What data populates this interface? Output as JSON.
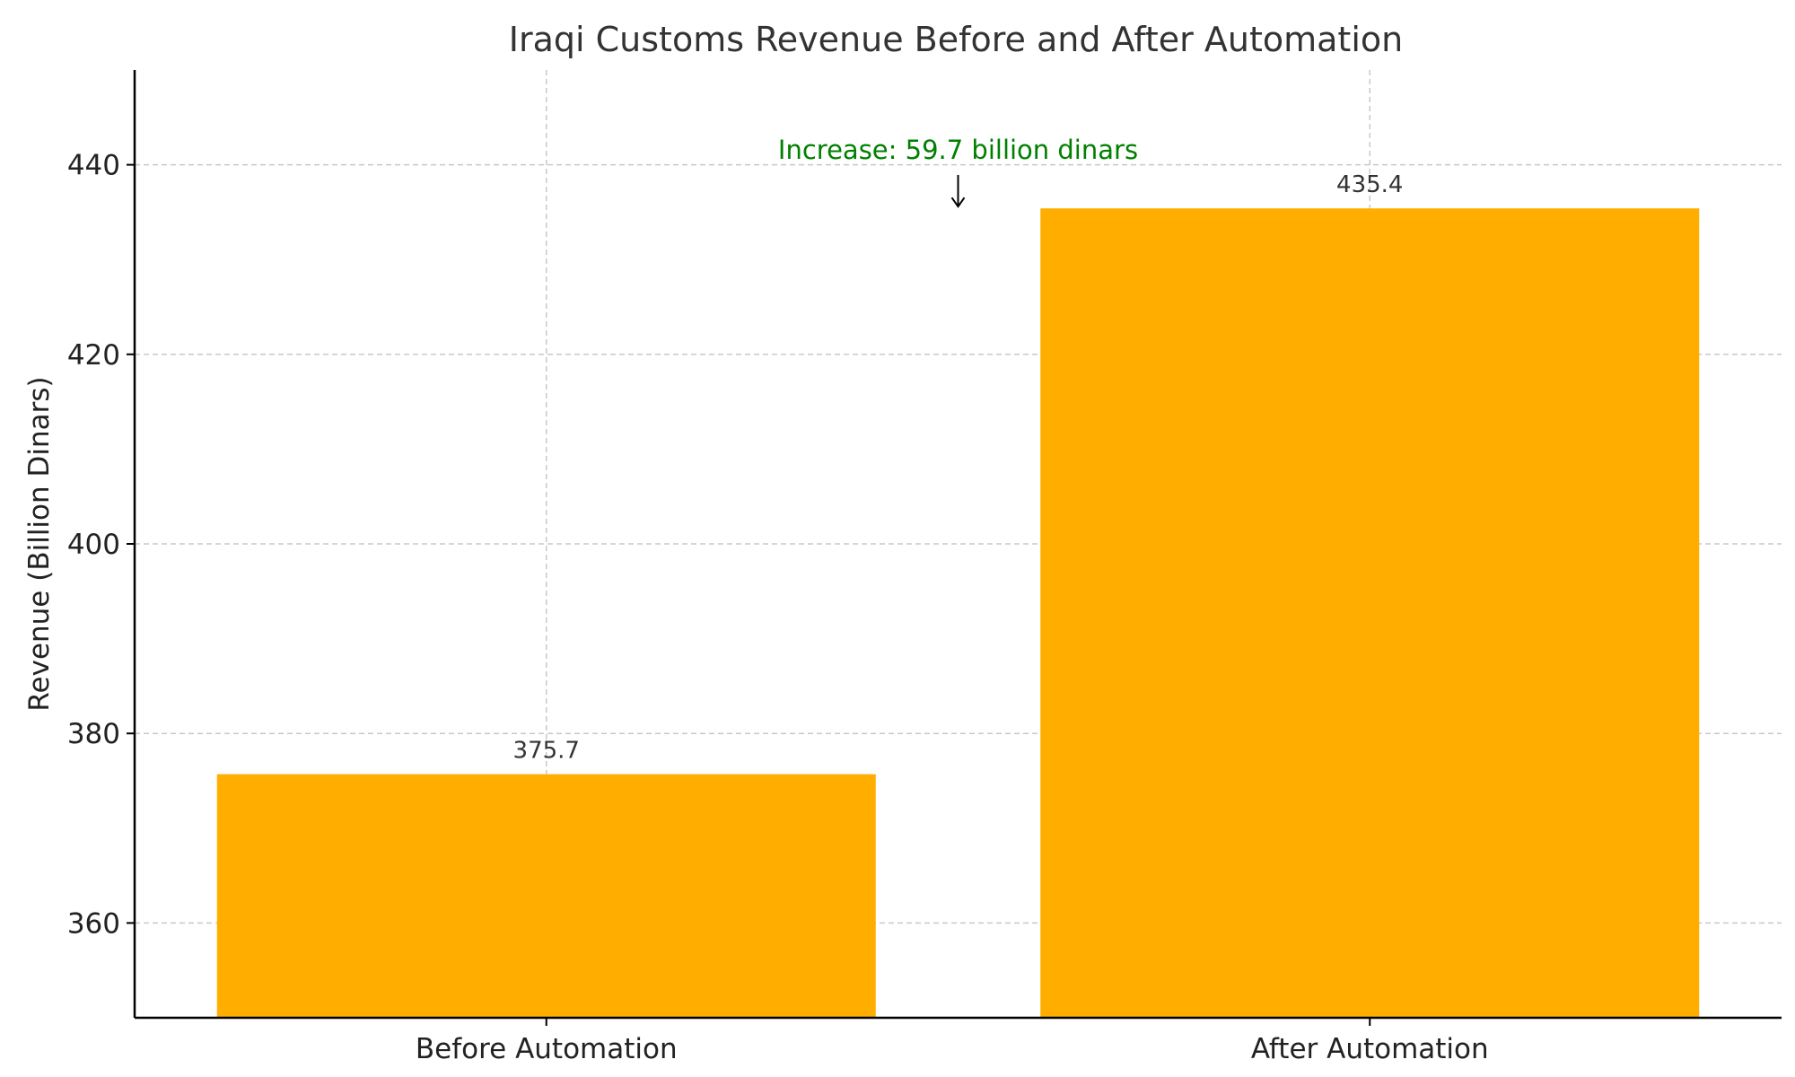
{
  "chart_data": {
    "type": "bar",
    "title": "Iraqi Customs Revenue Before and After Automation",
    "xlabel": "",
    "ylabel": "Revenue (Billion Dinars)",
    "categories": [
      "Before Automation",
      "After Automation"
    ],
    "values": [
      375.7,
      435.4
    ],
    "value_labels": [
      "375.7",
      "435.4"
    ],
    "ylim": [
      350,
      450
    ],
    "yticks": [
      360,
      380,
      400,
      420,
      440
    ],
    "grid": true,
    "bar_color": "#FFAE00",
    "annotation": {
      "text": "Increase: 59.7 billion dinars",
      "color": "#008000",
      "points_to_value": 435.4
    }
  }
}
